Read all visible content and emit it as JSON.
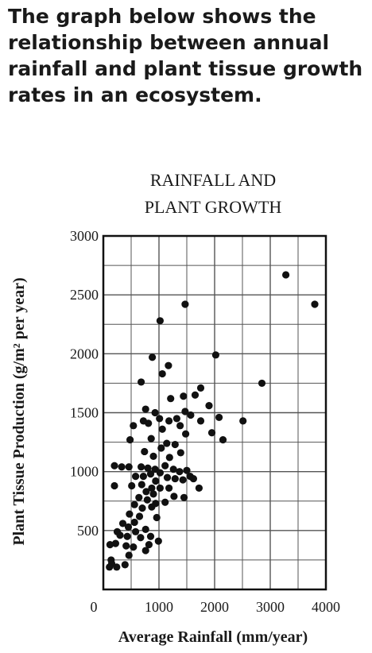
{
  "question": {
    "text": "The graph below shows the\nrelationship between annual\nrainfall and plant tissue growth\nrates in an ecosystem."
  },
  "chart_data": {
    "type": "scatter",
    "title": [
      "RAINFALL AND",
      "PLANT GROWTH"
    ],
    "xlabel": "Average Rainfall (mm/year)",
    "ylabel": "Plant Tissue Production (g/m² per year)",
    "xlim": [
      0,
      4000
    ],
    "ylim": [
      0,
      3000
    ],
    "xticks": [
      "0",
      "1000",
      "2000",
      "3000",
      "4000"
    ],
    "yticks": [
      "500",
      "1000",
      "1500",
      "2000",
      "2500",
      "3000"
    ],
    "grid": true,
    "point_color": "#111111",
    "points": [
      [
        3280,
        2670
      ],
      [
        3800,
        2420
      ],
      [
        1470,
        2420
      ],
      [
        1020,
        2280
      ],
      [
        2020,
        1990
      ],
      [
        880,
        1970
      ],
      [
        1170,
        1900
      ],
      [
        1060,
        1830
      ],
      [
        680,
        1760
      ],
      [
        2850,
        1750
      ],
      [
        1750,
        1710
      ],
      [
        1650,
        1650
      ],
      [
        1440,
        1640
      ],
      [
        1900,
        1560
      ],
      [
        1210,
        1620
      ],
      [
        760,
        1530
      ],
      [
        930,
        1500
      ],
      [
        2080,
        1460
      ],
      [
        1470,
        1510
      ],
      [
        1570,
        1480
      ],
      [
        1010,
        1450
      ],
      [
        1180,
        1430
      ],
      [
        720,
        1430
      ],
      [
        810,
        1410
      ],
      [
        2510,
        1430
      ],
      [
        540,
        1390
      ],
      [
        1750,
        1430
      ],
      [
        1320,
        1450
      ],
      [
        1380,
        1390
      ],
      [
        1060,
        1360
      ],
      [
        1480,
        1320
      ],
      [
        1950,
        1330
      ],
      [
        860,
        1280
      ],
      [
        2150,
        1270
      ],
      [
        480,
        1270
      ],
      [
        1140,
        1240
      ],
      [
        1290,
        1230
      ],
      [
        1040,
        1200
      ],
      [
        740,
        1170
      ],
      [
        1390,
        1160
      ],
      [
        900,
        1130
      ],
      [
        1190,
        1120
      ],
      [
        200,
        1050
      ],
      [
        330,
        1040
      ],
      [
        460,
        1040
      ],
      [
        680,
        1040
      ],
      [
        800,
        1030
      ],
      [
        930,
        1020
      ],
      [
        1110,
        1050
      ],
      [
        1260,
        1020
      ],
      [
        1370,
        1000
      ],
      [
        1500,
        1010
      ],
      [
        1020,
        990
      ],
      [
        850,
        980
      ],
      [
        580,
        960
      ],
      [
        720,
        960
      ],
      [
        1150,
        950
      ],
      [
        1290,
        940
      ],
      [
        1430,
        930
      ],
      [
        1560,
        960
      ],
      [
        1620,
        940
      ],
      [
        940,
        920
      ],
      [
        200,
        880
      ],
      [
        510,
        880
      ],
      [
        690,
        890
      ],
      [
        870,
        860
      ],
      [
        1020,
        860
      ],
      [
        1180,
        860
      ],
      [
        1720,
        860
      ],
      [
        770,
        830
      ],
      [
        900,
        810
      ],
      [
        1270,
        790
      ],
      [
        1450,
        780
      ],
      [
        640,
        780
      ],
      [
        790,
        760
      ],
      [
        1110,
        740
      ],
      [
        940,
        730
      ],
      [
        560,
        720
      ],
      [
        870,
        700
      ],
      [
        700,
        690
      ],
      [
        470,
        640
      ],
      [
        650,
        620
      ],
      [
        960,
        610
      ],
      [
        560,
        570
      ],
      [
        350,
        560
      ],
      [
        450,
        530
      ],
      [
        760,
        510
      ],
      [
        250,
        490
      ],
      [
        580,
        490
      ],
      [
        300,
        460
      ],
      [
        430,
        450
      ],
      [
        670,
        440
      ],
      [
        850,
        450
      ],
      [
        220,
        390
      ],
      [
        120,
        380
      ],
      [
        410,
        370
      ],
      [
        540,
        360
      ],
      [
        990,
        410
      ],
      [
        820,
        380
      ],
      [
        760,
        330
      ],
      [
        460,
        290
      ],
      [
        140,
        250
      ],
      [
        150,
        220
      ],
      [
        110,
        190
      ],
      [
        240,
        190
      ],
      [
        390,
        210
      ]
    ]
  }
}
